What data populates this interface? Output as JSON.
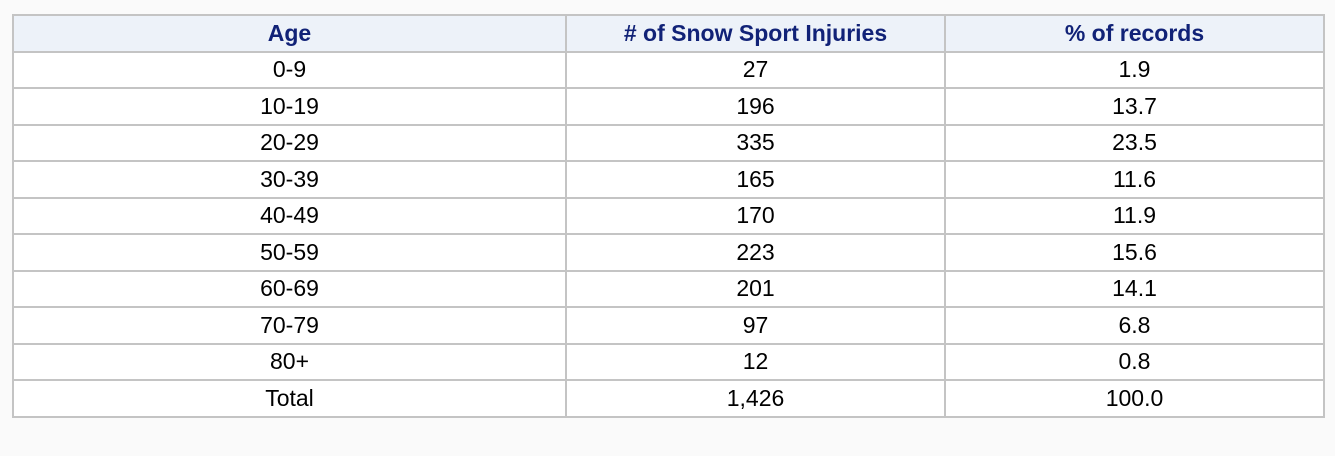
{
  "table": {
    "header": [
      "Age",
      "# of Snow Sport Injuries",
      "% of records"
    ],
    "rows": [
      [
        "0-9",
        "27",
        "1.9"
      ],
      [
        "10-19",
        "196",
        "13.7"
      ],
      [
        "20-29",
        "335",
        "23.5"
      ],
      [
        "30-39",
        "165",
        "11.6"
      ],
      [
        "40-49",
        "170",
        "11.9"
      ],
      [
        "50-59",
        "223",
        "15.6"
      ],
      [
        "60-69",
        "201",
        "14.1"
      ],
      [
        "70-79",
        "97",
        "6.8"
      ],
      [
        "80+",
        "12",
        "0.8"
      ],
      [
        "Total",
        "1,426",
        "100.0"
      ]
    ]
  }
}
